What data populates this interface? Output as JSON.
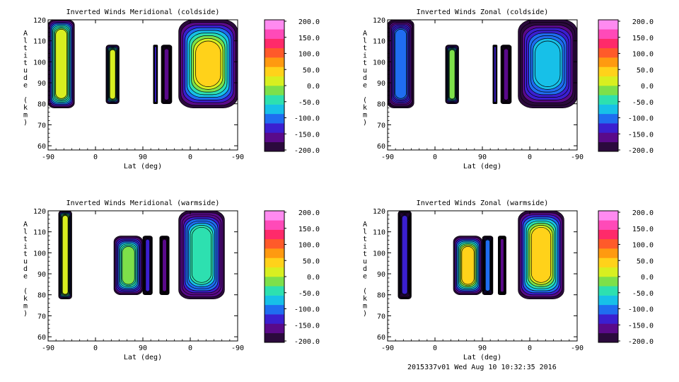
{
  "footer": "2015337v01 Wed Aug 10 10:32:35 2016",
  "chart_data": [
    {
      "type": "heatmap",
      "title": "Inverted Winds Meridional (coldside)",
      "xlabel": "Lat (deg)",
      "ylabel": "Altitude (km)",
      "x_tick_labels": [
        "-90",
        "0",
        "90",
        "0",
        "-90"
      ],
      "y_ticks": [
        60,
        70,
        80,
        90,
        100,
        110,
        120
      ],
      "ylim": [
        58,
        120
      ],
      "colorbar": {
        "min": -200,
        "max": 200,
        "labels": [
          "200.0",
          "150.0",
          "100.0",
          "50.0",
          "0.0",
          "-50.0",
          "-100.0",
          "-150.0",
          "-200.0"
        ]
      },
      "regions": [
        {
          "x_range": [
            -90,
            -40
          ],
          "alt_range": [
            78,
            120
          ],
          "center_value": 10,
          "edge_value": -200
        },
        {
          "x_range": [
            20,
            45
          ],
          "alt_range": [
            80,
            108
          ],
          "center_value": 15,
          "edge_value": -200
        },
        {
          "x_range": [
            110,
            118
          ],
          "alt_range": [
            80,
            108
          ],
          "center_value": -130,
          "edge_value": -200
        },
        {
          "x_range": [
            125,
            145
          ],
          "alt_range": [
            80,
            108
          ],
          "center_value": -150,
          "edge_value": -200
        },
        {
          "x_range": [
            158,
            270
          ],
          "alt_range": [
            78,
            120
          ],
          "center_value": 40,
          "edge_value": -200
        }
      ]
    },
    {
      "type": "heatmap",
      "title": "Inverted Winds Zonal (coldside)",
      "xlabel": "Lat (deg)",
      "ylabel": "Altitude (km)",
      "x_tick_labels": [
        "-90",
        "0",
        "90",
        "0",
        "-90"
      ],
      "y_ticks": [
        60,
        70,
        80,
        90,
        100,
        110,
        120
      ],
      "ylim": [
        58,
        120
      ],
      "colorbar": {
        "min": -200,
        "max": 200,
        "labels": [
          "200.0",
          "150.0",
          "100.0",
          "50.0",
          "0.0",
          "-50.0",
          "-100.0",
          "-150.0",
          "-200.0"
        ]
      },
      "regions": [
        {
          "x_range": [
            -90,
            -40
          ],
          "alt_range": [
            78,
            120
          ],
          "center_value": -100,
          "edge_value": -200
        },
        {
          "x_range": [
            20,
            45
          ],
          "alt_range": [
            80,
            108
          ],
          "center_value": -20,
          "edge_value": -200
        },
        {
          "x_range": [
            110,
            118
          ],
          "alt_range": [
            80,
            108
          ],
          "center_value": -140,
          "edge_value": -200
        },
        {
          "x_range": [
            125,
            145
          ],
          "alt_range": [
            80,
            108
          ],
          "center_value": -150,
          "edge_value": -200
        },
        {
          "x_range": [
            158,
            270
          ],
          "alt_range": [
            78,
            120
          ],
          "center_value": -60,
          "edge_value": -200
        }
      ]
    },
    {
      "type": "heatmap",
      "title": "Inverted Winds Meridional (warmside)",
      "xlabel": "Lat (deg)",
      "ylabel": "Altitude (km)",
      "x_tick_labels": [
        "-90",
        "0",
        "90",
        "0",
        "-90"
      ],
      "y_ticks": [
        60,
        70,
        80,
        90,
        100,
        110,
        120
      ],
      "ylim": [
        58,
        120
      ],
      "colorbar": {
        "min": -200,
        "max": 200,
        "labels": [
          "200.0",
          "150.0",
          "100.0",
          "50.0",
          "0.0",
          "-50.0",
          "-100.0",
          "-150.0",
          "-200.0"
        ]
      },
      "regions": [
        {
          "x_range": [
            -70,
            -45
          ],
          "alt_range": [
            78,
            120
          ],
          "center_value": 20,
          "edge_value": -200
        },
        {
          "x_range": [
            35,
            90
          ],
          "alt_range": [
            80,
            108
          ],
          "center_value": -20,
          "edge_value": -200
        },
        {
          "x_range": [
            90,
            108
          ],
          "alt_range": [
            80,
            108
          ],
          "center_value": -120,
          "edge_value": -200
        },
        {
          "x_range": [
            122,
            140
          ],
          "alt_range": [
            80,
            108
          ],
          "center_value": -160,
          "edge_value": -200
        },
        {
          "x_range": [
            158,
            245
          ],
          "alt_range": [
            78,
            120
          ],
          "center_value": -40,
          "edge_value": -200
        }
      ]
    },
    {
      "type": "heatmap",
      "title": "Inverted Winds Zonal (warmside)",
      "xlabel": "Lat (deg)",
      "ylabel": "Altitude (km)",
      "x_tick_labels": [
        "-90",
        "0",
        "90",
        "0",
        "-90"
      ],
      "y_ticks": [
        60,
        70,
        80,
        90,
        100,
        110,
        120
      ],
      "ylim": [
        58,
        120
      ],
      "colorbar": {
        "min": -200,
        "max": 200,
        "labels": [
          "200.0",
          "150.0",
          "100.0",
          "50.0",
          "0.0",
          "-50.0",
          "-100.0",
          "-150.0",
          "-200.0"
        ]
      },
      "regions": [
        {
          "x_range": [
            -70,
            -45
          ],
          "alt_range": [
            78,
            120
          ],
          "center_value": -130,
          "edge_value": -200
        },
        {
          "x_range": [
            35,
            90
          ],
          "alt_range": [
            80,
            108
          ],
          "center_value": 40,
          "edge_value": -200
        },
        {
          "x_range": [
            90,
            110
          ],
          "alt_range": [
            80,
            108
          ],
          "center_value": -100,
          "edge_value": -200
        },
        {
          "x_range": [
            120,
            135
          ],
          "alt_range": [
            80,
            108
          ],
          "center_value": -150,
          "edge_value": -200
        },
        {
          "x_range": [
            158,
            245
          ],
          "alt_range": [
            78,
            120
          ],
          "center_value": 30,
          "edge_value": -200
        }
      ]
    }
  ]
}
